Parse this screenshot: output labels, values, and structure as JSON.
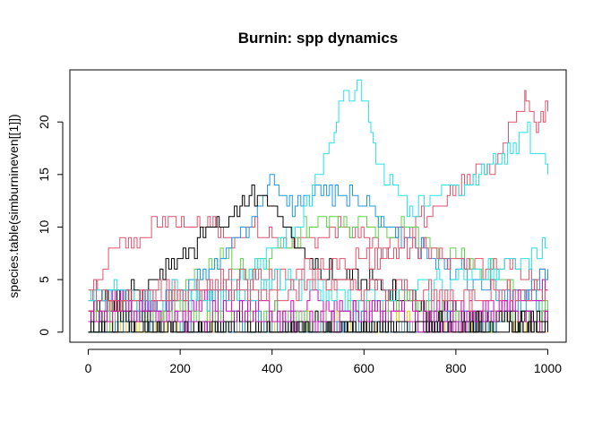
{
  "chart_data": {
    "type": "line",
    "title": "Burnin: spp dynamics",
    "xlabel": "",
    "ylabel": "species.table(simburnineven[[1]])",
    "xlim": [
      0,
      1000
    ],
    "ylim": [
      0,
      24
    ],
    "x_ticks": [
      0,
      200,
      400,
      600,
      800,
      1000
    ],
    "y_ticks": [
      0,
      5,
      10,
      15,
      20
    ],
    "grid": false,
    "legend": "none",
    "series": [
      {
        "color": "#DF536B",
        "x": [
          0,
          20,
          50,
          100,
          150,
          180,
          220,
          260,
          300,
          350,
          400,
          450,
          500,
          550,
          600,
          650,
          700,
          750,
          800,
          850,
          880,
          920,
          950,
          960,
          980,
          1000
        ],
        "values": [
          3,
          5,
          8,
          9,
          10,
          11,
          10,
          11,
          9,
          10,
          9,
          8,
          9,
          10,
          9,
          8,
          10,
          12,
          14,
          16,
          15,
          20,
          23,
          21,
          20,
          21
        ]
      },
      {
        "color": "#61D04F",
        "x": [
          0,
          50,
          100,
          150,
          200,
          250,
          300,
          350,
          400,
          450,
          500,
          550,
          600,
          650,
          700,
          750,
          800,
          850,
          900,
          950,
          1000
        ],
        "values": [
          1,
          2,
          3,
          2,
          4,
          6,
          7,
          6,
          8,
          9,
          11,
          10,
          11,
          9,
          10,
          8,
          7,
          6,
          5,
          4,
          3
        ]
      },
      {
        "color": "#2297E6",
        "x": [
          0,
          50,
          100,
          150,
          200,
          250,
          300,
          350,
          380,
          400,
          420,
          450,
          500,
          550,
          600,
          650,
          700,
          750,
          800,
          850,
          900,
          950,
          1000
        ],
        "values": [
          2,
          3,
          2,
          3,
          4,
          6,
          8,
          10,
          13,
          15,
          13,
          12,
          14,
          13,
          12,
          10,
          9,
          7,
          6,
          5,
          4,
          3,
          4
        ]
      },
      {
        "color": "#28E2E5",
        "x": [
          0,
          50,
          100,
          150,
          200,
          250,
          300,
          350,
          400,
          450,
          500,
          530,
          550,
          580,
          600,
          620,
          650,
          700,
          750,
          800,
          850,
          900,
          950,
          980,
          1000
        ],
        "values": [
          3,
          4,
          3,
          2,
          3,
          4,
          5,
          6,
          8,
          10,
          15,
          18,
          22,
          23,
          22,
          18,
          14,
          12,
          13,
          14,
          15,
          17,
          19,
          17,
          15
        ]
      },
      {
        "color": "#000000",
        "x": [
          0,
          50,
          100,
          150,
          200,
          250,
          280,
          300,
          330,
          350,
          380,
          400,
          430,
          460,
          500,
          550,
          600,
          650,
          700,
          750,
          800,
          850,
          900,
          950,
          1000
        ],
        "values": [
          2,
          3,
          4,
          5,
          7,
          9,
          11,
          10,
          12,
          13,
          13,
          12,
          10,
          8,
          6,
          5,
          5,
          4,
          3,
          2,
          2,
          1,
          1,
          1,
          1
        ]
      },
      {
        "color": "#CD0BBC",
        "x": [
          0,
          100,
          200,
          300,
          400,
          500,
          600,
          700,
          800,
          900,
          1000
        ],
        "values": [
          2,
          3,
          2,
          3,
          2,
          3,
          2,
          3,
          2,
          3,
          4
        ]
      },
      {
        "color": "#F5C710",
        "x": [
          0,
          100,
          200,
          300,
          400,
          500,
          600,
          700,
          800,
          900,
          1000
        ],
        "values": [
          1,
          0,
          1,
          1,
          0,
          1,
          0,
          1,
          0,
          1,
          0
        ]
      },
      {
        "color": "#9E9E9E",
        "x": [
          0,
          100,
          200,
          300,
          400,
          500,
          600,
          700,
          800,
          900,
          1000
        ],
        "values": [
          1,
          2,
          1,
          0,
          1,
          1,
          0,
          1,
          2,
          1,
          1
        ]
      },
      {
        "color": "#DF536B",
        "x": [
          0,
          100,
          200,
          300,
          400,
          500,
          600,
          700,
          800,
          900,
          1000
        ],
        "values": [
          2,
          3,
          4,
          5,
          5,
          6,
          7,
          8,
          7,
          6,
          5
        ]
      },
      {
        "color": "#61D04F",
        "x": [
          0,
          100,
          200,
          300,
          400,
          500,
          600,
          700,
          800,
          900,
          1000
        ],
        "values": [
          1,
          1,
          2,
          1,
          2,
          1,
          2,
          3,
          2,
          1,
          2
        ]
      },
      {
        "color": "#2297E6",
        "x": [
          0,
          100,
          200,
          300,
          400,
          500,
          600,
          700,
          800,
          900,
          1000
        ],
        "values": [
          0,
          1,
          0,
          1,
          1,
          0,
          1,
          0,
          1,
          1,
          6
        ]
      },
      {
        "color": "#28E2E5",
        "x": [
          0,
          100,
          200,
          300,
          400,
          500,
          600,
          700,
          800,
          900,
          1000
        ],
        "values": [
          4,
          3,
          4,
          3,
          5,
          4,
          3,
          4,
          5,
          6,
          8
        ]
      },
      {
        "color": "#000000",
        "x": [
          0,
          100,
          200,
          300,
          400,
          500,
          600,
          700,
          800,
          900,
          1000
        ],
        "values": [
          0,
          1,
          0,
          1,
          0,
          1,
          0,
          0,
          1,
          1,
          2
        ]
      },
      {
        "color": "#CD0BBC",
        "x": [
          0,
          100,
          200,
          300,
          400,
          500,
          600,
          700,
          800,
          900,
          1000
        ],
        "values": [
          1,
          2,
          1,
          2,
          1,
          1,
          2,
          1,
          1,
          2,
          1
        ]
      },
      {
        "color": "#DF536B",
        "x": [
          0,
          100,
          200,
          300,
          400,
          500,
          600,
          700,
          800,
          900,
          1000
        ],
        "values": [
          4,
          3,
          4,
          4,
          4,
          5,
          4,
          4,
          3,
          4,
          4
        ]
      },
      {
        "color": "#000000",
        "x": [
          0,
          1000
        ],
        "values": [
          0,
          0
        ]
      }
    ]
  }
}
